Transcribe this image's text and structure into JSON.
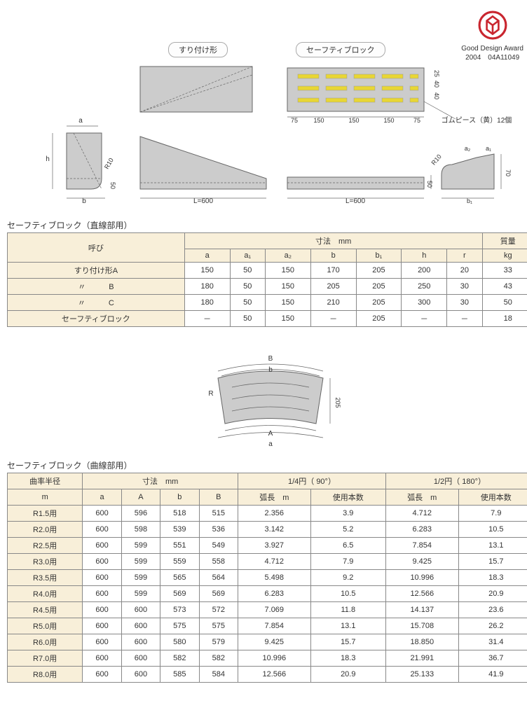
{
  "award": {
    "line1": "Good Design Award",
    "line2": "2004　04A11049"
  },
  "diagrams": {
    "label_suritsuke": "すり付け形",
    "label_safety": "セーフティブロック",
    "rubber_note": "ゴムピース（黄）12個",
    "dims": {
      "L": "L=600",
      "h": "h",
      "a": "a",
      "b": "b",
      "R10": "R10",
      "fifty": "50",
      "seventy": "70",
      "a1": "a₁",
      "a2": "a₂",
      "b1": "b₁",
      "top25": "25",
      "top40": "40",
      "top40b": "40",
      "w75": "75",
      "w150": "150",
      "w205": "205",
      "B": "B",
      "b_small": "b",
      "A": "A",
      "a_small": "a",
      "R": "R"
    }
  },
  "table1": {
    "title": "セーフティブロック（直線部用）",
    "headers": {
      "name": "呼び",
      "dim": "寸法　mm",
      "mass": "質量",
      "mass_unit": "kg",
      "cols": [
        "a",
        "a₁",
        "a₂",
        "b",
        "b₁",
        "h",
        "r"
      ]
    },
    "rows": [
      {
        "name": "すり付け形A",
        "v": [
          "150",
          "50",
          "150",
          "170",
          "205",
          "200",
          "20",
          "33"
        ]
      },
      {
        "name": "〃　　　B",
        "v": [
          "180",
          "50",
          "150",
          "205",
          "205",
          "250",
          "30",
          "43"
        ]
      },
      {
        "name": "〃　　　C",
        "v": [
          "180",
          "50",
          "150",
          "210",
          "205",
          "300",
          "30",
          "50"
        ]
      },
      {
        "name": "セーフティブロック",
        "v": [
          "－",
          "50",
          "150",
          "－",
          "205",
          "－",
          "－",
          "18"
        ]
      }
    ]
  },
  "table2": {
    "title": "セーフティブロック（曲線部用）",
    "headers": {
      "radius": "曲率半径",
      "radius_unit": "m",
      "dim": "寸法　mm",
      "quarter": "1/4円（ 90°）",
      "half": "1/2円（ 180°）",
      "cols": [
        "a",
        "A",
        "b",
        "B"
      ],
      "arc": "弧長　m",
      "count": "使用本数"
    },
    "rows": [
      {
        "r": "R1.5用",
        "v": [
          "600",
          "596",
          "518",
          "515",
          "2.356",
          "3.9",
          "4.712",
          "7.9"
        ]
      },
      {
        "r": "R2.0用",
        "v": [
          "600",
          "598",
          "539",
          "536",
          "3.142",
          "5.2",
          "6.283",
          "10.5"
        ]
      },
      {
        "r": "R2.5用",
        "v": [
          "600",
          "599",
          "551",
          "549",
          "3.927",
          "6.5",
          "7.854",
          "13.1"
        ]
      },
      {
        "r": "R3.0用",
        "v": [
          "600",
          "599",
          "559",
          "558",
          "4.712",
          "7.9",
          "9.425",
          "15.7"
        ]
      },
      {
        "r": "R3.5用",
        "v": [
          "600",
          "599",
          "565",
          "564",
          "5.498",
          "9.2",
          "10.996",
          "18.3"
        ]
      },
      {
        "r": "R4.0用",
        "v": [
          "600",
          "599",
          "569",
          "569",
          "6.283",
          "10.5",
          "12.566",
          "20.9"
        ]
      },
      {
        "r": "R4.5用",
        "v": [
          "600",
          "600",
          "573",
          "572",
          "7.069",
          "11.8",
          "14.137",
          "23.6"
        ]
      },
      {
        "r": "R5.0用",
        "v": [
          "600",
          "600",
          "575",
          "575",
          "7.854",
          "13.1",
          "15.708",
          "26.2"
        ]
      },
      {
        "r": "R6.0用",
        "v": [
          "600",
          "600",
          "580",
          "579",
          "9.425",
          "15.7",
          "18.850",
          "31.4"
        ]
      },
      {
        "r": "R7.0用",
        "v": [
          "600",
          "600",
          "582",
          "582",
          "10.996",
          "18.3",
          "21.991",
          "36.7"
        ]
      },
      {
        "r": "R8.0用",
        "v": [
          "600",
          "600",
          "585",
          "584",
          "12.566",
          "20.9",
          "25.133",
          "41.9"
        ]
      }
    ]
  },
  "colors": {
    "block": "#cccccc",
    "rubber": "#e8d634",
    "header_bg": "#f8efd9",
    "border": "#888888",
    "logo": "#c9262f"
  }
}
